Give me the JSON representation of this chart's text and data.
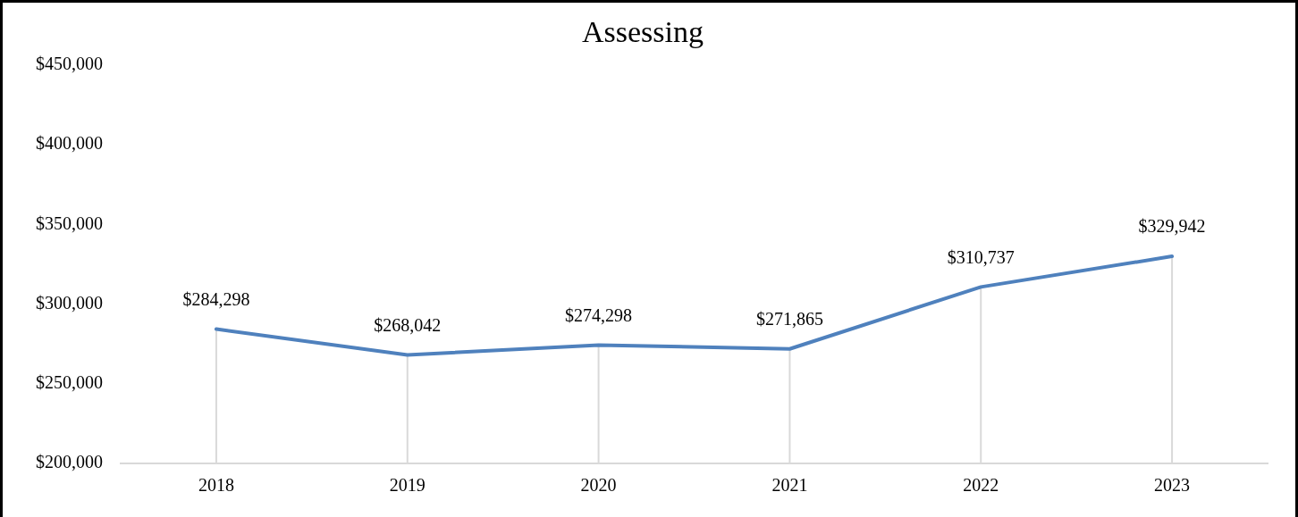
{
  "chart_data": {
    "type": "line",
    "title": "Assessing",
    "categories": [
      "2018",
      "2019",
      "2020",
      "2021",
      "2022",
      "2023"
    ],
    "series": [
      {
        "color": "#4f81bd",
        "values": [
          284298,
          268042,
          274298,
          271865,
          310737,
          329942
        ]
      }
    ],
    "ylim": [
      200000,
      450000
    ],
    "yticks": [
      {
        "value": 200000,
        "label": "$200,000"
      },
      {
        "value": 250000,
        "label": "$250,000"
      },
      {
        "value": 300000,
        "label": "$300,000"
      },
      {
        "value": 350000,
        "label": "$350,000"
      },
      {
        "value": 400000,
        "label": "$400,000"
      },
      {
        "value": 450000,
        "label": "$450,000"
      }
    ],
    "value_labels": [
      "$284,298",
      "$268,042",
      "$274,298",
      "$271,865",
      "$310,737",
      "$329,942"
    ],
    "grid": false,
    "legend": false,
    "marker": "none",
    "line_style": "solid"
  }
}
